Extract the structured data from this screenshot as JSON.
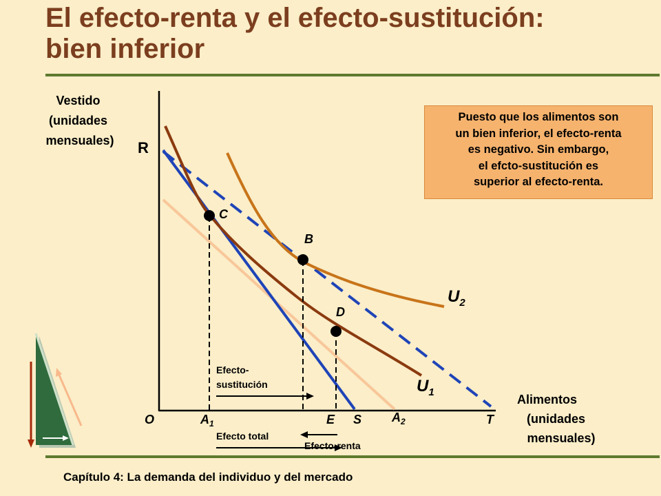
{
  "title": {
    "line1": "El efecto-renta y el efecto-sustitución:",
    "line2": "bien inferior"
  },
  "footer": "Capítulo 4: La demanda del individuo y del mercado",
  "note": [
    "Puesto que  los alimentos son",
    "un bien inferior, el efecto-renta",
    "es negativo. Sin embargo,",
    "el efcto-sustitución es",
    "superior al efecto-renta."
  ],
  "axes": {
    "y_label": [
      "Vestido",
      "(unidades",
      "mensuales)"
    ],
    "x_label": [
      "Alimentos",
      "(unidades",
      "mensuales)"
    ]
  },
  "points": {
    "R": "R",
    "O": "O",
    "A1_main": "A",
    "A1_sub": "1",
    "E": "E",
    "S": "S",
    "A2_main": "A",
    "A2_sub": "2",
    "T": "T",
    "C": "C",
    "B": "B",
    "D": "D"
  },
  "curves": {
    "U1_main": "U",
    "U1_sub": "1",
    "U2_main": "U",
    "U2_sub": "2"
  },
  "effects": {
    "substitution": [
      "Efecto-",
      "sustitución"
    ],
    "total": "Efecto total",
    "income": "Efecto-renta"
  },
  "colors": {
    "budget_blue": "#1f44b7",
    "indifference_brown": "#8b3a0f",
    "indifference_orange": "#c8741a",
    "parallel_budget": "#f8c79a",
    "title_brown": "#7b3e1e"
  }
}
